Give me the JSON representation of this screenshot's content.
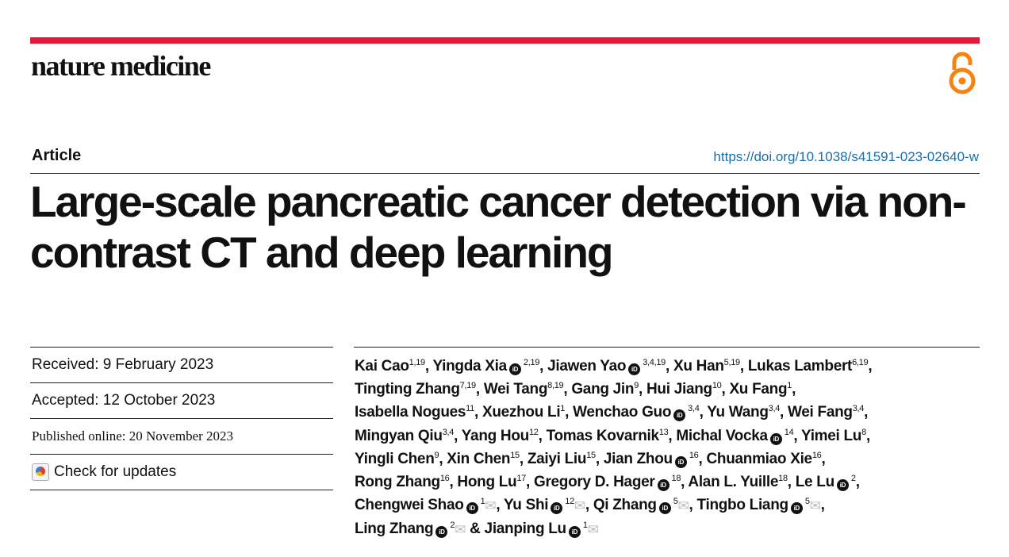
{
  "header": {
    "journal": "nature medicine",
    "open_access_icon": "open-access-lock-icon",
    "accent_color": "#e3193b",
    "oa_color": "#f68212"
  },
  "article": {
    "type": "Article",
    "doi": "https://doi.org/10.1038/s41591-023-02640-w",
    "title": "Large-scale pancreatic cancer detection via non-contrast CT and deep learning"
  },
  "meta": {
    "received": "Received: 9 February 2023",
    "accepted": "Accepted: 12 October 2023",
    "published": "Published online: 20 November 2023",
    "check_updates": "Check for updates"
  },
  "authors": [
    {
      "name": "Kai Cao",
      "sup": "1,19"
    },
    {
      "name": "Yingda Xia",
      "sup": "2,19",
      "orcid": true
    },
    {
      "name": "Jiawen Yao",
      "sup": "3,4,19",
      "orcid": true
    },
    {
      "name": "Xu Han",
      "sup": "5,19"
    },
    {
      "name": "Lukas Lambert",
      "sup": "6,19"
    },
    {
      "name": "Tingting Zhang",
      "sup": "7,19"
    },
    {
      "name": "Wei Tang",
      "sup": "8,19"
    },
    {
      "name": "Gang Jin",
      "sup": "9"
    },
    {
      "name": "Hui Jiang",
      "sup": "10"
    },
    {
      "name": "Xu Fang",
      "sup": "1"
    },
    {
      "name": "Isabella Nogues",
      "sup": "11"
    },
    {
      "name": "Xuezhou Li",
      "sup": "1"
    },
    {
      "name": "Wenchao Guo",
      "sup": "3,4",
      "orcid": true
    },
    {
      "name": "Yu Wang",
      "sup": "3,4"
    },
    {
      "name": "Wei Fang",
      "sup": "3,4"
    },
    {
      "name": "Mingyan Qiu",
      "sup": "3,4"
    },
    {
      "name": "Yang Hou",
      "sup": "12"
    },
    {
      "name": "Tomas Kovarnik",
      "sup": "13"
    },
    {
      "name": "Michal Vocka",
      "sup": "14",
      "orcid": true
    },
    {
      "name": "Yimei Lu",
      "sup": "8"
    },
    {
      "name": "Yingli Chen",
      "sup": "9"
    },
    {
      "name": "Xin Chen",
      "sup": "15"
    },
    {
      "name": "Zaiyi Liu",
      "sup": "15"
    },
    {
      "name": "Jian Zhou",
      "sup": "16",
      "orcid": true
    },
    {
      "name": "Chuanmiao Xie",
      "sup": "16"
    },
    {
      "name": "Rong Zhang",
      "sup": "16"
    },
    {
      "name": "Hong Lu",
      "sup": "17"
    },
    {
      "name": "Gregory D. Hager",
      "sup": "18",
      "orcid": true
    },
    {
      "name": "Alan L. Yuille",
      "sup": "18"
    },
    {
      "name": "Le Lu",
      "sup": "2",
      "orcid": true
    },
    {
      "name": "Chengwei Shao",
      "sup": "1",
      "orcid": true,
      "email": true
    },
    {
      "name": "Yu Shi",
      "sup": "12",
      "orcid": true,
      "email": true
    },
    {
      "name": "Qi Zhang",
      "sup": "5",
      "orcid": true,
      "email": true
    },
    {
      "name": "Tingbo Liang",
      "sup": "5",
      "orcid": true,
      "email": true
    },
    {
      "name": "Ling Zhang",
      "sup": "2",
      "orcid": true,
      "email": true
    },
    {
      "name": "Jianping Lu",
      "sup": "1",
      "orcid": true,
      "email": true
    }
  ],
  "authors_conjunction": "&"
}
